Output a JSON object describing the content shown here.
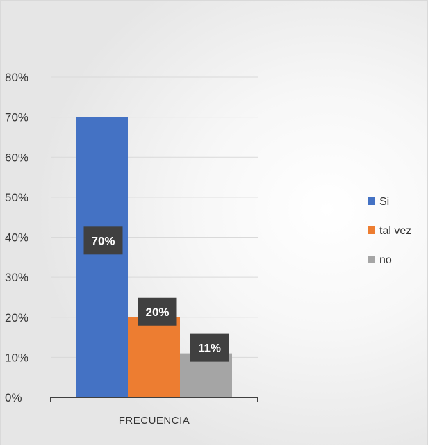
{
  "chart_data": {
    "type": "bar",
    "categories": [
      "FRECUENCIA"
    ],
    "series": [
      {
        "name": "Si",
        "values": [
          0.7
        ],
        "label": "70%",
        "color": "#4472c4"
      },
      {
        "name": "tal vez",
        "values": [
          0.2
        ],
        "label": "20%",
        "color": "#ed7d31"
      },
      {
        "name": "no",
        "values": [
          0.11
        ],
        "label": "11%",
        "color": "#a5a5a5"
      }
    ],
    "yticks": [
      "0%",
      "10%",
      "20%",
      "30%",
      "40%",
      "50%",
      "60%",
      "70%",
      "80%"
    ],
    "ylim": [
      0,
      0.8
    ],
    "grid": true,
    "legend": "right",
    "title": "",
    "xlabel": "",
    "ylabel": ""
  }
}
